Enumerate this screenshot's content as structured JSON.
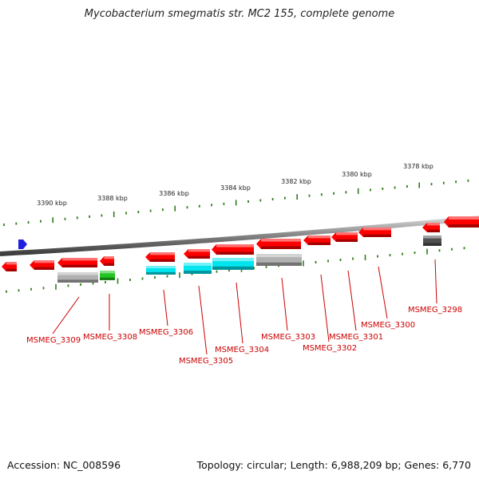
{
  "title": "Mycobacterium smegmatis str. MC2 155, complete genome",
  "footer": {
    "accession": "Accession: NC_008596",
    "summary": "Topology: circular; Length: 6,988,209 bp; Genes: 6,770"
  },
  "colors": {
    "gene_red": "#ff0000",
    "label_red": "#cc0000",
    "tick_green": "#2e7d1a",
    "cyan": "#00e5ee",
    "green": "#22c522",
    "gray": "#b0b0b0",
    "dark_gray": "#505050",
    "marker_blue": "#1f1fdd",
    "backbone_gray": "#8a8a8a"
  },
  "ruler": {
    "labels": [
      "3390 kbp",
      "3388 kbp",
      "3386 kbp",
      "3384 kbp",
      "3382 kbp",
      "3380 kbp",
      "3378 kbp"
    ]
  },
  "gene_labels": [
    "MSMEG_3309",
    "MSMEG_3308",
    "MSMEG_3306",
    "MSMEG_3305",
    "MSMEG_3304",
    "MSMEG_3303",
    "MSMEG_3302",
    "MSMEG_3301",
    "MSMEG_3300",
    "MSMEG_3298"
  ]
}
